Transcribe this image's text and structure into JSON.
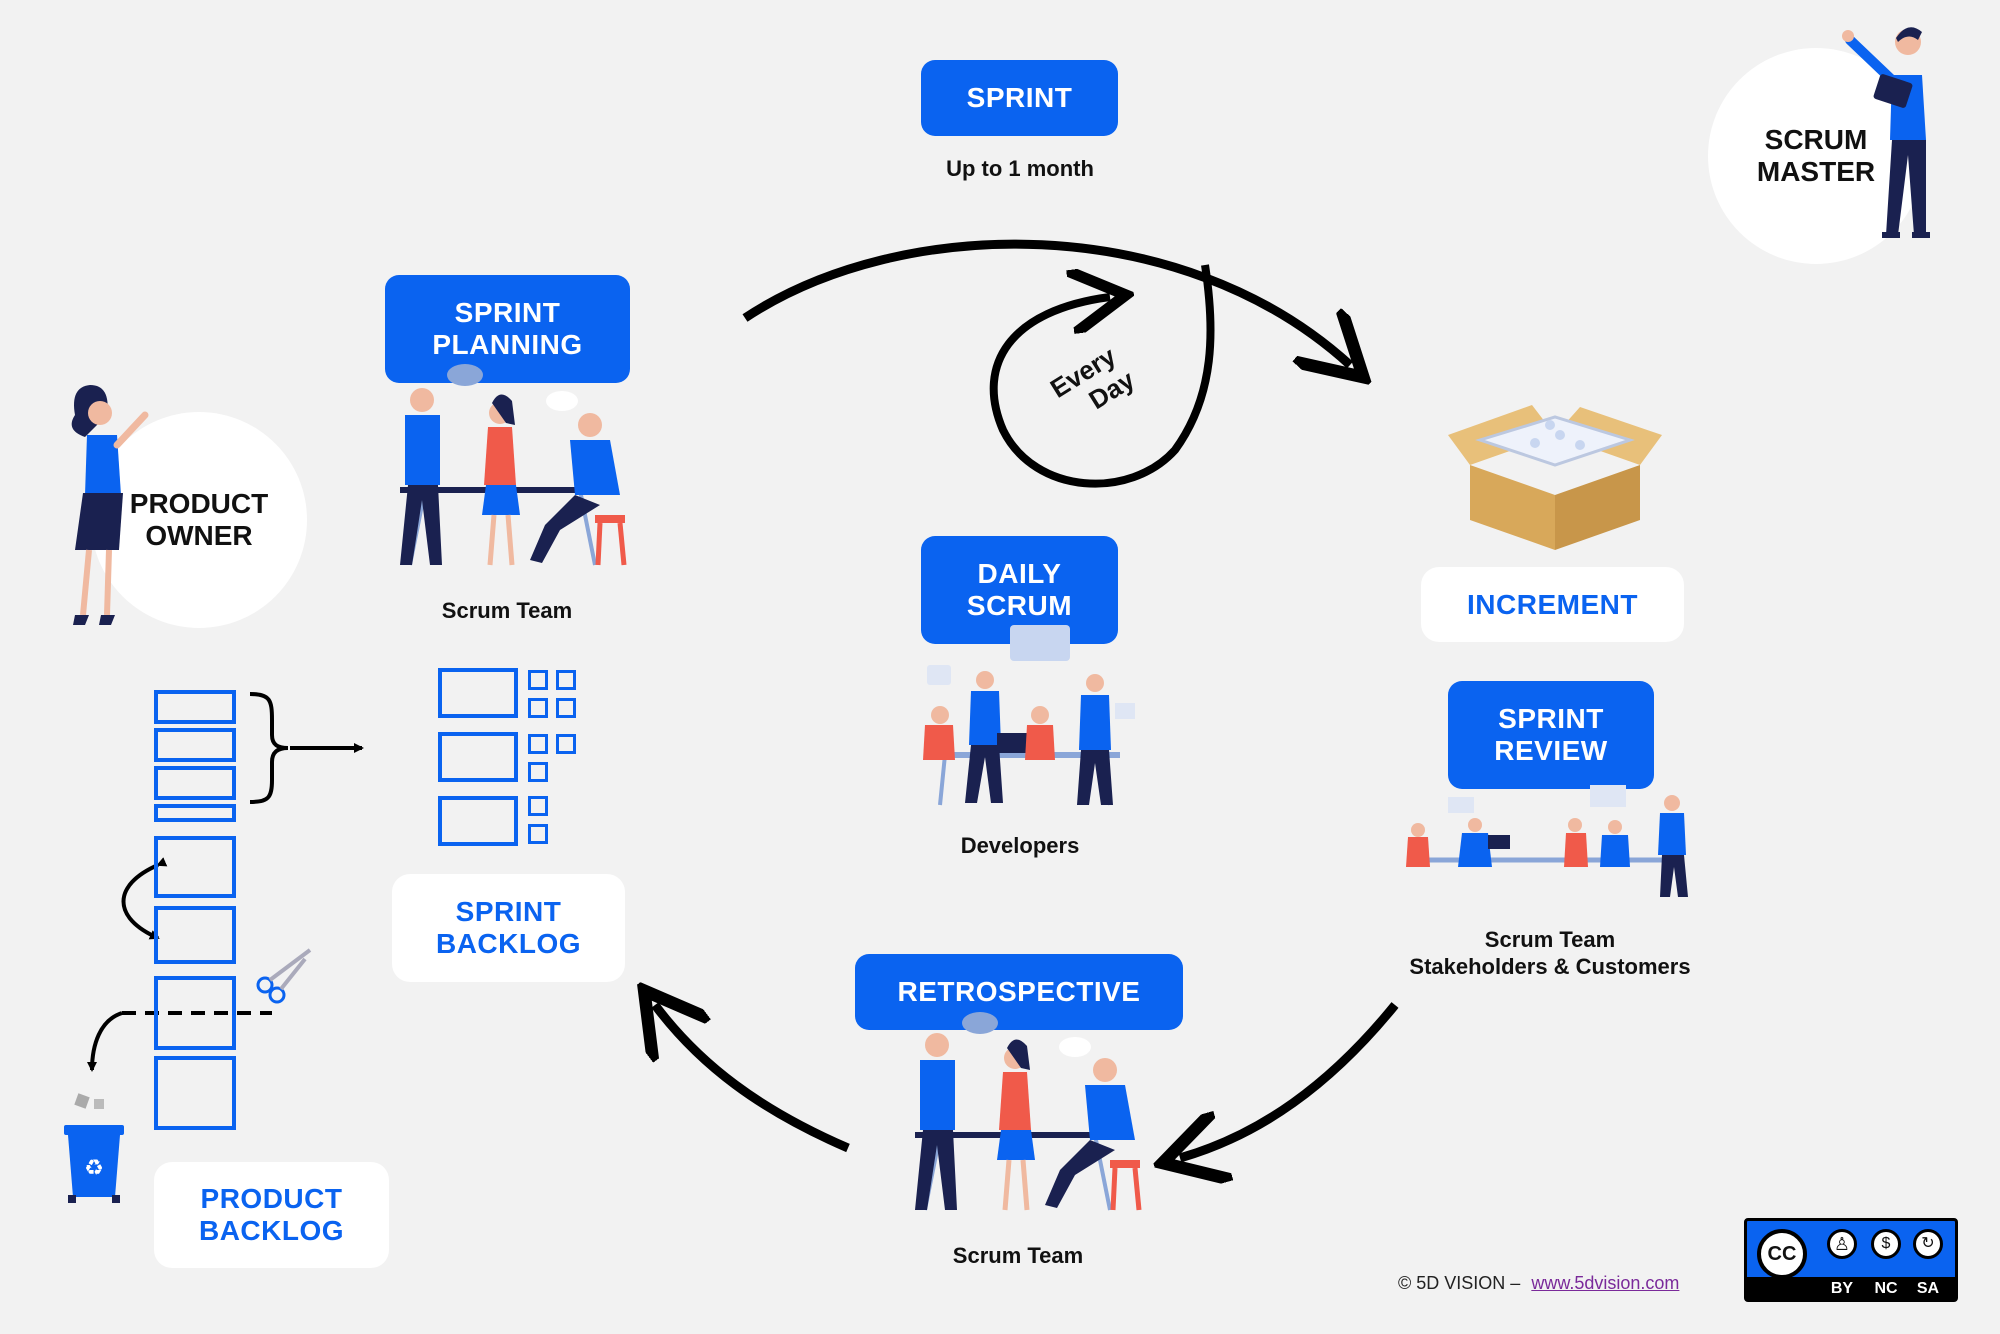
{
  "sprint": {
    "label": "SPRINT",
    "subtitle": "Up to 1 month"
  },
  "every_day": {
    "line1": "Every",
    "line2": "Day"
  },
  "sprint_planning": {
    "label": "SPRINT\nPLANNING",
    "caption": "Scrum Team"
  },
  "daily_scrum": {
    "label": "DAILY\nSCRUM",
    "caption": "Developers"
  },
  "increment": {
    "label": "INCREMENT"
  },
  "sprint_review": {
    "label": "SPRINT\nREVIEW",
    "caption_line1": "Scrum Team",
    "caption_line2": "Stakeholders & Customers"
  },
  "retrospective": {
    "label": "RETROSPECTIVE",
    "caption": "Scrum Team"
  },
  "sprint_backlog": {
    "label": "SPRINT\nBACKLOG"
  },
  "product_backlog": {
    "label": "PRODUCT\nBACKLOG"
  },
  "product_owner": {
    "label": "PRODUCT\nOWNER"
  },
  "scrum_master": {
    "label": "SCRUM\nMASTER"
  },
  "footer": {
    "copyright": "© 5D VISION  –",
    "link": "www.5dvision.com"
  },
  "license": {
    "cc": "CC",
    "by": "BY",
    "nc": "NC",
    "sa": "SA"
  },
  "colors": {
    "brand_blue": "#0a63f0",
    "background": "#f2f2f2",
    "accent_red": "#f05a4a",
    "navy": "#1a2150"
  }
}
